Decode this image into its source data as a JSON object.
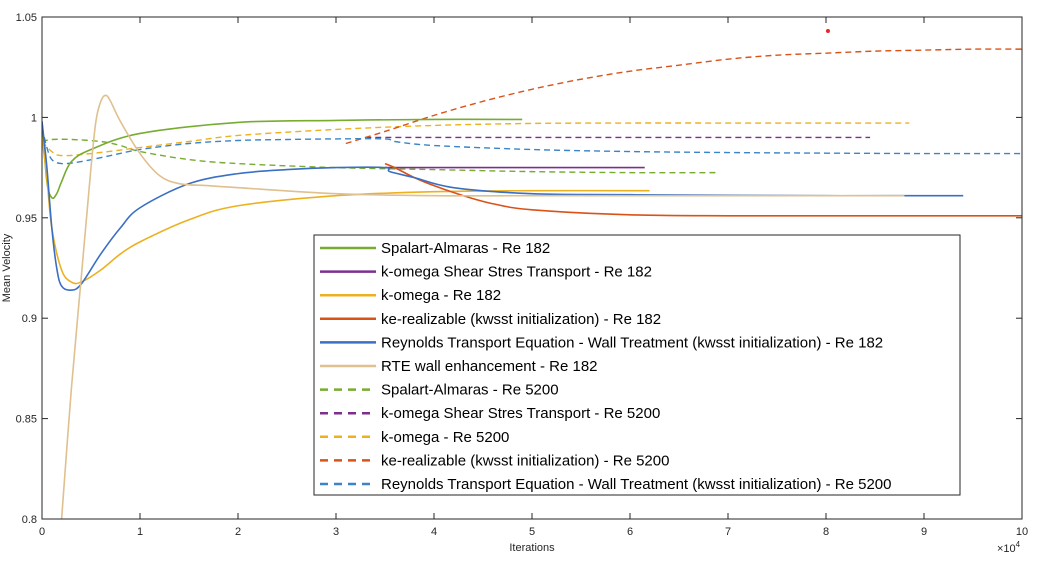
{
  "chart_data": {
    "type": "line",
    "title": "",
    "xlabel": "Iterations",
    "ylabel": "Mean Velocity",
    "x_exponent_label": "×10",
    "x_exponent_power": "4",
    "xlim": [
      0,
      10
    ],
    "ylim": [
      0.8,
      1.05
    ],
    "x_ticks": [
      0,
      1,
      2,
      3,
      4,
      5,
      6,
      7,
      8,
      9,
      10
    ],
    "x_tick_labels": [
      "0",
      "1",
      "2",
      "3",
      "4",
      "5",
      "6",
      "7",
      "8",
      "9",
      "10"
    ],
    "y_ticks": [
      0.8,
      0.85,
      0.9,
      0.95,
      1.0,
      1.05
    ],
    "y_tick_labels": [
      "0.8",
      "0.85",
      "0.9",
      "0.95",
      "1",
      "1.05"
    ],
    "grid": false,
    "box": true,
    "legend_position": "bottom-center",
    "series": [
      {
        "name": "Spalart-Almaras - Re 182",
        "color": "#77AC30",
        "style": "solid",
        "x": [
          0,
          0.05,
          0.1,
          0.15,
          0.2,
          0.3,
          0.5,
          1.0,
          2.0,
          3.0,
          4.0,
          4.9
        ],
        "y": [
          0.998,
          0.968,
          0.96,
          0.962,
          0.968,
          0.978,
          0.984,
          0.992,
          0.9975,
          0.9985,
          0.999,
          0.999
        ]
      },
      {
        "name": "k-omega Shear Stres Transport - Re 182",
        "color": "#7E2F8E",
        "style": "solid",
        "x": [
          3.5,
          4.0,
          5.0,
          6.15
        ],
        "y": [
          0.975,
          0.975,
          0.975,
          0.975
        ]
      },
      {
        "name": "k-omega - Re 182",
        "color": "#EDB120",
        "style": "solid",
        "x": [
          0,
          0.05,
          0.1,
          0.2,
          0.3,
          0.4,
          0.6,
          0.8,
          1.0,
          1.5,
          2.0,
          3.0,
          4.0,
          5.0,
          6.2
        ],
        "y": [
          0.99,
          0.97,
          0.945,
          0.924,
          0.918,
          0.918,
          0.924,
          0.932,
          0.938,
          0.949,
          0.956,
          0.961,
          0.963,
          0.9635,
          0.9635
        ]
      },
      {
        "name": "ke-realizable (kwsst initialization) - Re 182",
        "color": "#D95319",
        "style": "solid",
        "x": [
          3.5,
          3.6,
          3.8,
          4.0,
          4.3,
          4.6,
          5.0,
          6.0,
          7.0,
          8.0,
          9.0,
          10.0
        ],
        "y": [
          0.977,
          0.975,
          0.97,
          0.966,
          0.961,
          0.957,
          0.954,
          0.9515,
          0.951,
          0.951,
          0.951,
          0.951
        ]
      },
      {
        "name": "Reynolds Transport Equation - Wall Treatment (kwsst initialization) - Re 182",
        "color": "#3A6FC4",
        "style": "solid",
        "x": [
          0,
          0.05,
          0.1,
          0.15,
          0.2,
          0.3,
          0.4,
          0.6,
          0.8,
          1.0,
          1.5,
          2.0,
          2.5,
          3.0,
          3.5,
          3.55,
          3.8,
          4.2,
          5.0,
          6.0,
          8.0,
          9.4
        ],
        "y": [
          0.998,
          0.975,
          0.945,
          0.925,
          0.916,
          0.914,
          0.917,
          0.932,
          0.945,
          0.955,
          0.967,
          0.972,
          0.974,
          0.975,
          0.975,
          0.973,
          0.97,
          0.965,
          0.962,
          0.9615,
          0.961,
          0.961
        ]
      },
      {
        "name": "RTE wall enhancement - Re 182",
        "color": "#DFC08F",
        "style": "solid",
        "x": [
          0.2,
          0.3,
          0.4,
          0.5,
          0.55,
          0.6,
          0.65,
          0.7,
          0.8,
          1.0,
          1.2,
          1.4,
          1.7,
          2.0,
          3.0,
          4.0,
          5.0,
          6.0,
          8.0,
          8.8
        ],
        "y": [
          0.8,
          0.865,
          0.92,
          0.975,
          0.998,
          1.008,
          1.011,
          1.008,
          0.998,
          0.982,
          0.971,
          0.967,
          0.966,
          0.965,
          0.962,
          0.961,
          0.961,
          0.961,
          0.961,
          0.961
        ]
      },
      {
        "name": "Spalart-Almaras - Re 5200",
        "color": "#77AC30",
        "style": "dashed",
        "x": [
          0,
          0.1,
          0.3,
          0.6,
          0.8,
          1.0,
          1.5,
          2.0,
          3.0,
          4.0,
          5.0,
          6.0,
          6.9
        ],
        "y": [
          0.988,
          0.989,
          0.989,
          0.988,
          0.986,
          0.983,
          0.979,
          0.977,
          0.975,
          0.974,
          0.973,
          0.9725,
          0.9725
        ]
      },
      {
        "name": "k-omega Shear Stres Transport - Re 5200",
        "color": "#7E2F8E",
        "style": "dashed",
        "x": [
          3.3,
          4.0,
          5.0,
          6.0,
          7.0,
          8.0,
          8.45
        ],
        "y": [
          0.99,
          0.99,
          0.99,
          0.99,
          0.99,
          0.99,
          0.99
        ]
      },
      {
        "name": "k-omega - Re 5200",
        "color": "#EDB120",
        "style": "dashed",
        "x": [
          0,
          0.1,
          0.2,
          0.5,
          1.0,
          1.5,
          2.0,
          3.0,
          4.0,
          5.0,
          6.0,
          7.0,
          8.0,
          8.85
        ],
        "y": [
          0.988,
          0.983,
          0.981,
          0.982,
          0.985,
          0.988,
          0.991,
          0.994,
          0.996,
          0.997,
          0.9972,
          0.9972,
          0.9972,
          0.9972
        ]
      },
      {
        "name": "ke-realizable (kwsst initialization) - Re 5200",
        "color": "#D95319",
        "style": "dashed",
        "x": [
          3.1,
          3.5,
          4.0,
          4.5,
          5.0,
          5.5,
          6.0,
          6.5,
          7.0,
          7.5,
          8.0,
          8.5,
          9.0,
          9.5,
          10.0
        ],
        "y": [
          0.987,
          0.993,
          1.001,
          1.008,
          1.014,
          1.019,
          1.023,
          1.026,
          1.029,
          1.031,
          1.032,
          1.033,
          1.0335,
          1.034,
          1.034
        ]
      },
      {
        "name": "Reynolds Transport Equation - Wall Treatment (kwsst initialization) - Re 5200",
        "color": "#3A84C9",
        "style": "dashed",
        "x": [
          0,
          0.05,
          0.1,
          0.2,
          0.4,
          0.7,
          1.0,
          1.5,
          2.0,
          2.5,
          3.0,
          3.5,
          3.6,
          4.0,
          5.0,
          6.0,
          7.0,
          8.0,
          9.0,
          10.0
        ],
        "y": [
          0.995,
          0.985,
          0.979,
          0.977,
          0.978,
          0.981,
          0.984,
          0.987,
          0.9885,
          0.989,
          0.9893,
          0.9893,
          0.988,
          0.986,
          0.984,
          0.983,
          0.9825,
          0.9822,
          0.982,
          0.982
        ]
      }
    ],
    "annotations": [
      {
        "type": "point",
        "x": 8.02,
        "y": 1.043,
        "color": "#E6262A"
      }
    ]
  }
}
